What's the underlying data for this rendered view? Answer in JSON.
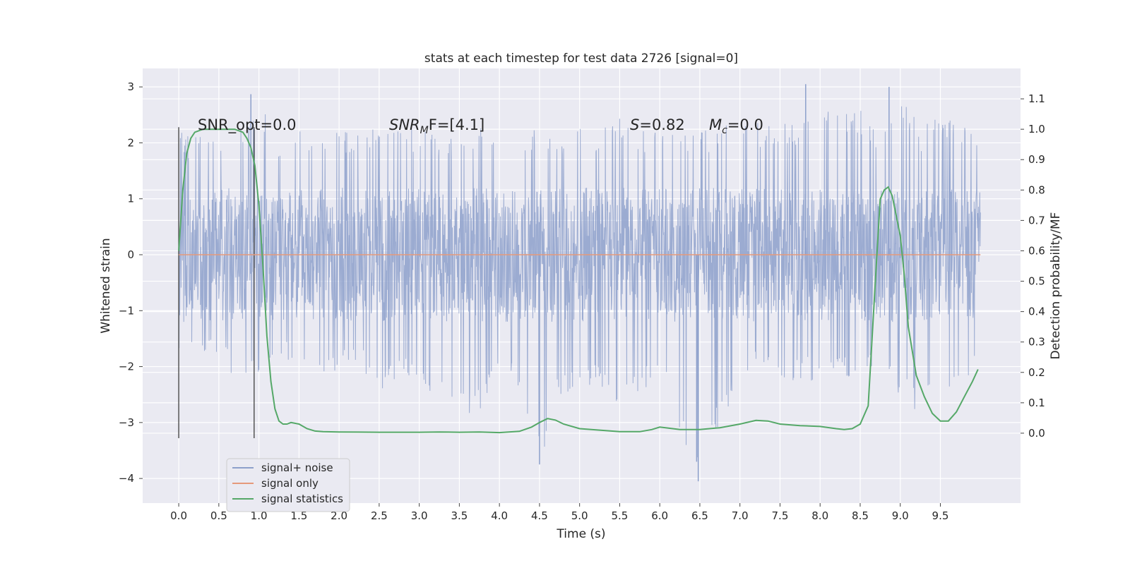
{
  "chart_data": {
    "type": "line",
    "title": "stats at each timestep for test data 2726 [signal=0]",
    "xlabel": "Time (s)",
    "ylabel": "Whitened strain",
    "ylabel_right": "Detection probability/MF",
    "xlim": [
      -0.45,
      10.5
    ],
    "ylim": [
      -4.44,
      3.33
    ],
    "ylim_right": [
      -0.23,
      1.2
    ],
    "x_ticks": [
      "0.0",
      "0.5",
      "1.0",
      "1.5",
      "2.0",
      "2.5",
      "3.0",
      "3.5",
      "4.0",
      "4.5",
      "5.0",
      "5.5",
      "6.0",
      "6.5",
      "7.0",
      "7.5",
      "8.0",
      "8.5",
      "9.0",
      "9.5"
    ],
    "x_tick_values": [
      0,
      0.5,
      1,
      1.5,
      2,
      2.5,
      3,
      3.5,
      4,
      4.5,
      5,
      5.5,
      6,
      6.5,
      7,
      7.5,
      8,
      8.5,
      9,
      9.5
    ],
    "y_ticks": [
      "3",
      "2",
      "1",
      "0",
      "−1",
      "−2",
      "−3",
      "−4"
    ],
    "y_tick_values": [
      3,
      2,
      1,
      0,
      -1,
      -2,
      -3,
      -4
    ],
    "y_ticks_right": [
      "1.1",
      "1.0",
      "0.9",
      "0.8",
      "0.7",
      "0.6",
      "0.5",
      "0.4",
      "0.3",
      "0.2",
      "0.1",
      "0.0"
    ],
    "y_tick_values_right": [
      1.1,
      1.0,
      0.9,
      0.8,
      0.7,
      0.6,
      0.5,
      0.4,
      0.3,
      0.2,
      0.1,
      0.0
    ],
    "grid": true,
    "legend_position": "lower-left",
    "annotations": {
      "snr_opt": "SNR_opt=0.0",
      "snr_mf_main": "SNR",
      "snr_mf_sub": "M",
      "snr_mf_tail": "F=[4.1]",
      "s_main": "S",
      "s_tail": "=0.82",
      "mc_main": "M",
      "mc_sub": "c",
      "mc_tail": "=0.0"
    },
    "vertical_markers": [
      0.0,
      0.94
    ],
    "series": [
      {
        "name": "signal+ noise",
        "color": "#8da0cb",
        "envelope": {
          "x": [
            0.0,
            0.25,
            0.5,
            0.75,
            1.0,
            1.25,
            1.5,
            1.75,
            2.0,
            2.25,
            2.5,
            2.75,
            3.0,
            3.25,
            3.5,
            3.75,
            4.0,
            4.25,
            4.5,
            4.75,
            5.0,
            5.25,
            5.5,
            5.75,
            6.0,
            6.25,
            6.5,
            6.75,
            7.0,
            7.25,
            7.5,
            7.75,
            8.0,
            8.25,
            8.5,
            8.75,
            9.0,
            9.25,
            9.5,
            9.75,
            10.0
          ],
          "upper": [
            2.2,
            2.1,
            2.3,
            2.2,
            2.85,
            2.0,
            2.3,
            2.1,
            2.3,
            2.2,
            2.4,
            2.2,
            2.3,
            2.1,
            2.2,
            2.3,
            2.4,
            2.2,
            2.3,
            2.1,
            2.4,
            2.2,
            2.5,
            2.3,
            2.2,
            2.2,
            2.3,
            2.2,
            2.6,
            2.4,
            2.4,
            2.3,
            3.05,
            2.5,
            2.7,
            2.3,
            3.0,
            2.3,
            2.5,
            2.4,
            2.0
          ],
          "lower": [
            -1.7,
            -2.0,
            -1.8,
            -2.5,
            -2.1,
            -1.9,
            -2.0,
            -2.1,
            -2.1,
            -2.0,
            -2.5,
            -2.2,
            -2.3,
            -2.7,
            -2.9,
            -2.8,
            -2.2,
            -2.4,
            -3.75,
            -2.6,
            -2.3,
            -2.4,
            -2.85,
            -2.5,
            -2.2,
            -3.2,
            -4.05,
            -3.2,
            -2.2,
            -2.1,
            -2.4,
            -2.2,
            -2.4,
            -2.3,
            -2.1,
            -2.2,
            -2.7,
            -2.8,
            -2.3,
            -2.5,
            -1.8
          ],
          "spikes": [
            {
              "x": 0.9,
              "y": 2.87
            },
            {
              "x": 7.82,
              "y": 3.05
            },
            {
              "x": 8.86,
              "y": 3.0
            },
            {
              "x": 4.5,
              "y": -3.75
            },
            {
              "x": 6.48,
              "y": -4.05
            },
            {
              "x": 6.46,
              "y": -3.7
            }
          ]
        }
      },
      {
        "name": "signal only",
        "color": "#e5997a",
        "x": [
          0.0,
          10.0
        ],
        "y": [
          0.0,
          0.0
        ]
      },
      {
        "name": "signal statistics",
        "color": "#55a868",
        "axis": "right",
        "x": [
          0.0,
          0.05,
          0.1,
          0.15,
          0.2,
          0.3,
          0.5,
          0.7,
          0.8,
          0.85,
          0.9,
          0.95,
          1.0,
          1.05,
          1.1,
          1.15,
          1.2,
          1.25,
          1.3,
          1.35,
          1.4,
          1.5,
          1.6,
          1.7,
          1.8,
          2.0,
          2.5,
          3.0,
          3.25,
          3.5,
          3.75,
          4.0,
          4.25,
          4.4,
          4.5,
          4.6,
          4.7,
          4.8,
          5.0,
          5.5,
          5.75,
          5.9,
          6.0,
          6.1,
          6.25,
          6.5,
          6.75,
          7.0,
          7.2,
          7.35,
          7.5,
          7.75,
          8.0,
          8.2,
          8.3,
          8.4,
          8.5,
          8.6,
          8.7,
          8.75,
          8.8,
          8.85,
          8.9,
          9.0,
          9.05,
          9.1,
          9.2,
          9.3,
          9.4,
          9.5,
          9.6,
          9.7,
          9.8,
          9.9,
          9.97
        ],
        "y": [
          0.6,
          0.8,
          0.92,
          0.97,
          0.99,
          1.0,
          1.0,
          1.0,
          0.99,
          0.97,
          0.94,
          0.88,
          0.75,
          0.55,
          0.32,
          0.17,
          0.08,
          0.04,
          0.03,
          0.03,
          0.035,
          0.03,
          0.015,
          0.007,
          0.005,
          0.004,
          0.003,
          0.003,
          0.004,
          0.003,
          0.004,
          0.002,
          0.006,
          0.02,
          0.035,
          0.048,
          0.043,
          0.03,
          0.015,
          0.005,
          0.005,
          0.012,
          0.02,
          0.017,
          0.012,
          0.012,
          0.018,
          0.03,
          0.042,
          0.04,
          0.03,
          0.025,
          0.022,
          0.015,
          0.012,
          0.015,
          0.03,
          0.09,
          0.55,
          0.77,
          0.8,
          0.81,
          0.78,
          0.65,
          0.52,
          0.35,
          0.19,
          0.12,
          0.065,
          0.04,
          0.04,
          0.07,
          0.12,
          0.17,
          0.21
        ]
      }
    ]
  }
}
